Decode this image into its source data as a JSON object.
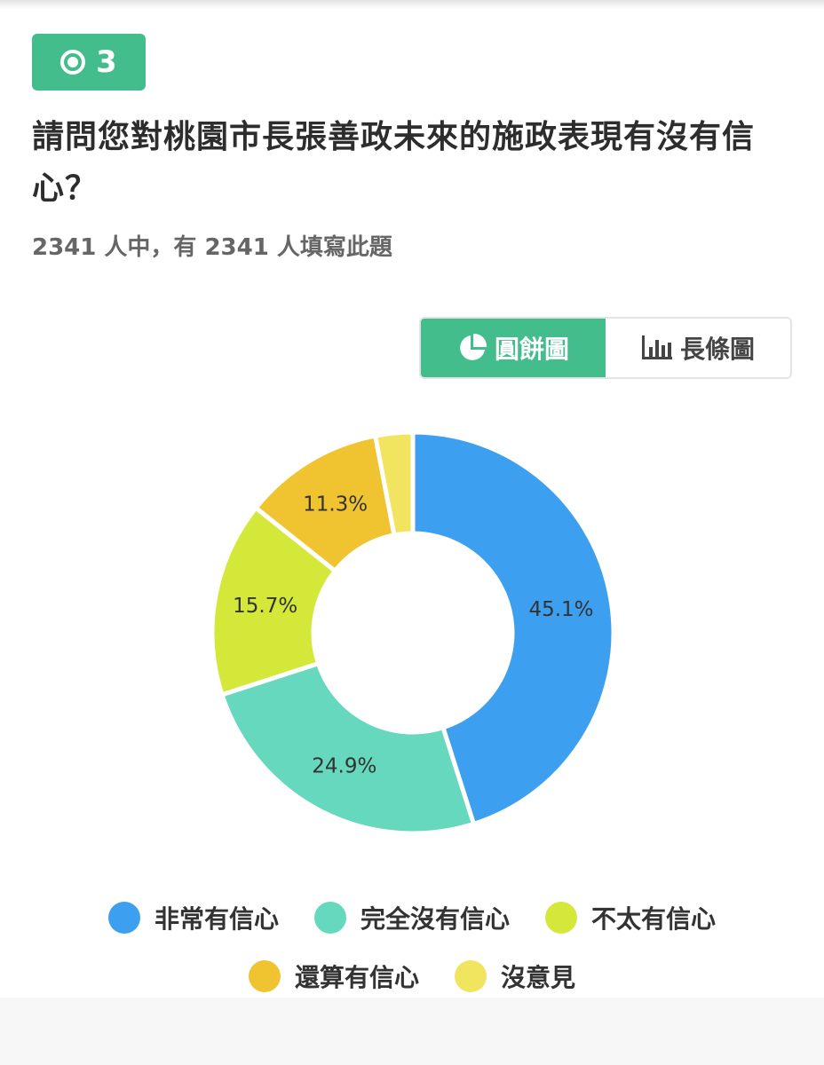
{
  "question": {
    "number": "3",
    "title": "請問您對桃園市長張善政未來的施政表現有沒有信心？",
    "stats": "2341 人中，有 2341 人填寫此題"
  },
  "view_toggle": {
    "pie_label": "圓餅圖",
    "bar_label": "長條圖",
    "selected": "pie"
  },
  "chart_data": {
    "type": "pie",
    "style": "donut",
    "categories": [
      "非常有信心",
      "完全沒有信心",
      "不太有信心",
      "還算有信心",
      "沒意見"
    ],
    "values": [
      45.1,
      24.9,
      15.7,
      11.3,
      3.0
    ],
    "labels": [
      "45.1%",
      "24.9%",
      "15.7%",
      "11.3%",
      ""
    ],
    "colors": [
      "#3d9ff0",
      "#66d8bd",
      "#d4e83a",
      "#f0c431",
      "#f1e55f"
    ],
    "legend_position": "bottom"
  }
}
